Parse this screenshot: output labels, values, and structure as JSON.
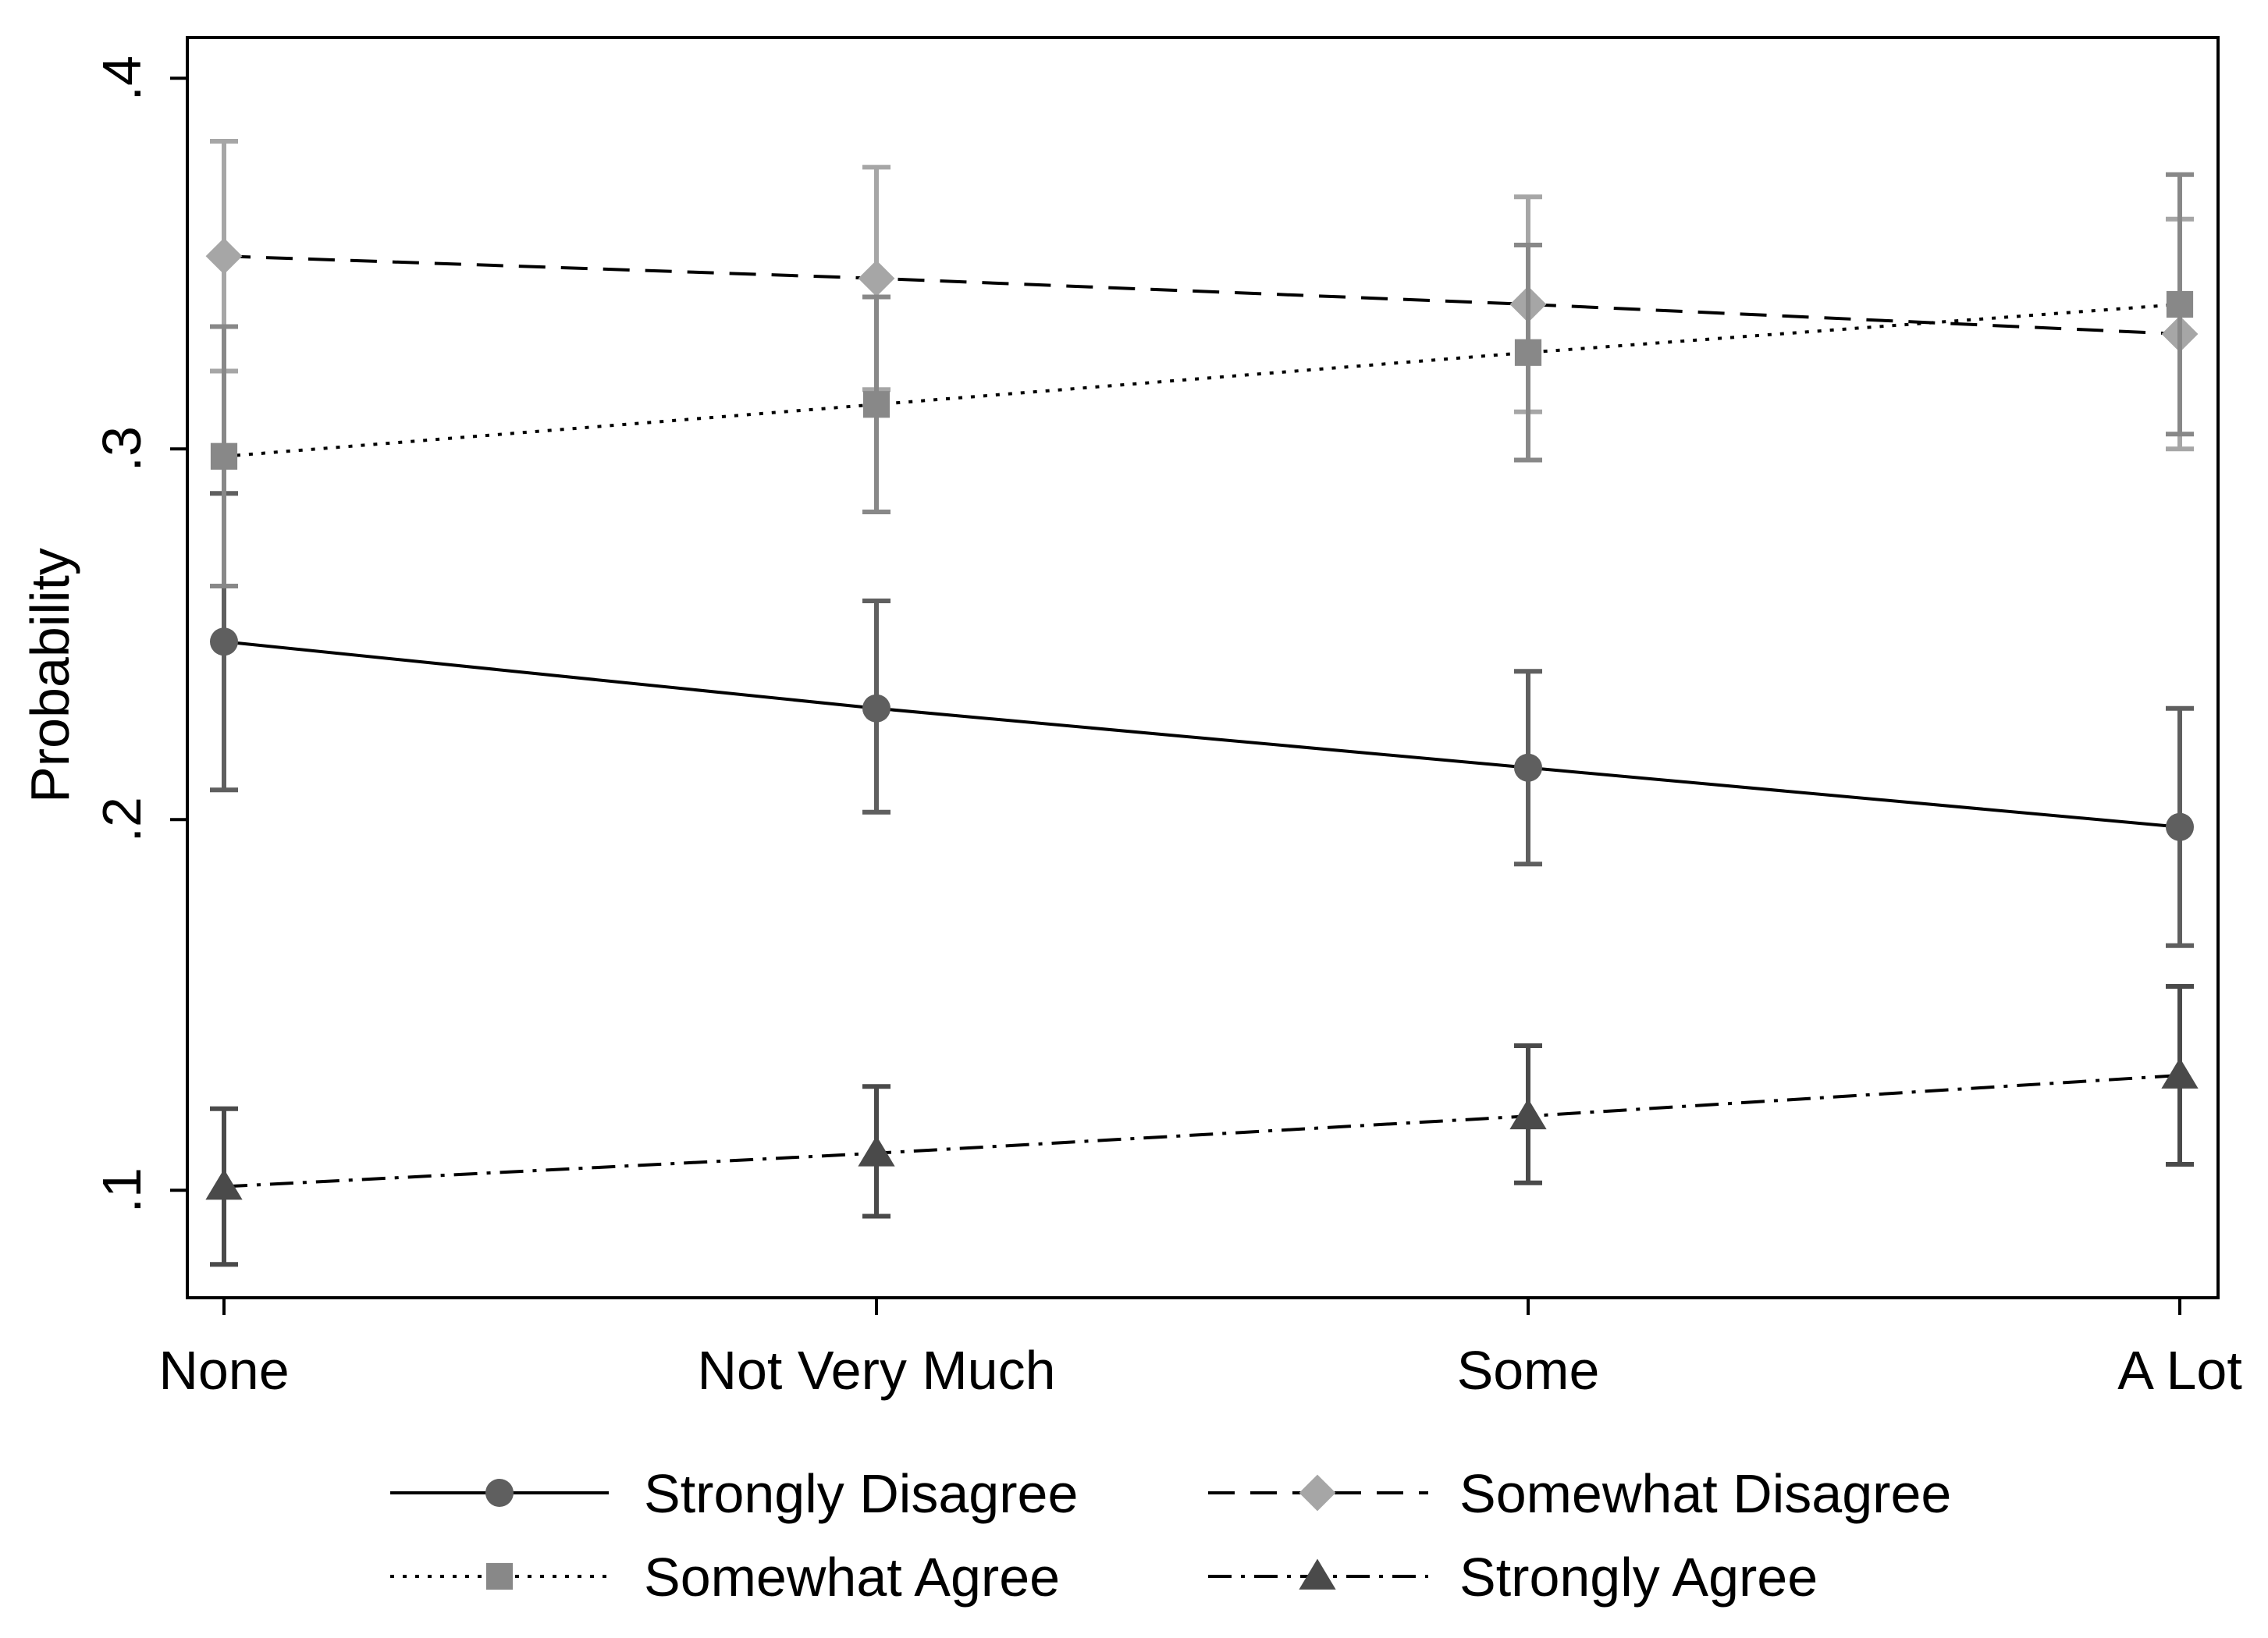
{
  "chart_data": {
    "type": "line",
    "title": "",
    "xlabel": "",
    "ylabel": "Probability",
    "ylim": [
      0.071,
      0.411
    ],
    "categories": [
      "None",
      "Not Very Much",
      "Some",
      "A Lot"
    ],
    "y_ticks": [
      {
        "value": 0.1,
        "label": ".1"
      },
      {
        "value": 0.2,
        "label": ".2"
      },
      {
        "value": 0.3,
        "label": ".3"
      },
      {
        "value": 0.4,
        "label": ".4"
      }
    ],
    "series": [
      {
        "name": "Strongly Disagree",
        "values": [
          0.248,
          0.23,
          0.214,
          0.198
        ],
        "ci_low": [
          0.208,
          0.202,
          0.188,
          0.166
        ],
        "ci_high": [
          0.288,
          0.259,
          0.24,
          0.23
        ],
        "marker": "circle",
        "dash": "solid",
        "color": "#5f5f5f"
      },
      {
        "name": "Somewhat Disagree",
        "values": [
          0.352,
          0.346,
          0.339,
          0.331
        ],
        "ci_low": [
          0.321,
          0.316,
          0.31,
          0.3
        ],
        "ci_high": [
          0.383,
          0.376,
          0.368,
          0.362
        ],
        "marker": "diamond",
        "dash": "long-dash",
        "color": "#a6a6a6"
      },
      {
        "name": "Somewhat Agree",
        "values": [
          0.298,
          0.312,
          0.326,
          0.339
        ],
        "ci_low": [
          0.263,
          0.283,
          0.297,
          0.304
        ],
        "ci_high": [
          0.333,
          0.341,
          0.355,
          0.374
        ],
        "marker": "square",
        "dash": "dotted",
        "color": "#888888"
      },
      {
        "name": "Strongly Agree",
        "values": [
          0.101,
          0.11,
          0.12,
          0.131
        ],
        "ci_low": [
          0.08,
          0.093,
          0.102,
          0.107
        ],
        "ci_high": [
          0.122,
          0.128,
          0.139,
          0.155
        ],
        "marker": "triangle",
        "dash": "dash-dot",
        "color": "#4a4a4a"
      }
    ],
    "legend": {
      "position": "bottom",
      "columns": 2,
      "entries": [
        "Strongly Disagree",
        "Somewhat Disagree",
        "Somewhat Agree",
        "Strongly Agree"
      ]
    },
    "grid": false
  }
}
